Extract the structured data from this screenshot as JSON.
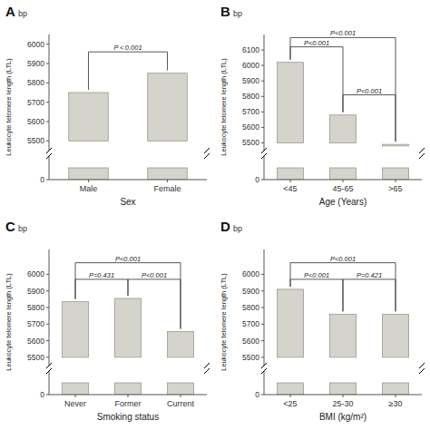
{
  "chart_data": [
    {
      "type": "bar",
      "title": "A",
      "subtitle": "bp",
      "x_label": "Sex",
      "y_label": "Leukocyte telomere length (LTL)",
      "categories": [
        "Male",
        "Female"
      ],
      "values": [
        5750,
        5850
      ],
      "bottoms": [
        5500,
        5500
      ],
      "stub_height": 60,
      "ylim": [
        5450,
        6050
      ],
      "yticks": [
        5500,
        5600,
        5700,
        5800,
        5900,
        6000
      ],
      "stub_ylim": [
        0,
        120
      ],
      "stub_yticks": [
        0
      ],
      "annotations": [
        {
          "x1": 0,
          "x2": 1,
          "y": 5960,
          "text": "P < 0.001"
        }
      ],
      "color": "#d4d4cc",
      "edge_color": "#999990",
      "annotation_color": "#444444"
    },
    {
      "type": "bar",
      "title": "B",
      "subtitle": "bp",
      "x_label": "Age (Years)",
      "y_label": "Leukocyte telomere length (LTL)",
      "categories": [
        "<45",
        "45-65",
        ">65"
      ],
      "values": [
        6020,
        5680,
        5490
      ],
      "bottoms": [
        5500,
        5500,
        5480
      ],
      "stub_height": 60,
      "ylim": [
        5450,
        6200
      ],
      "yticks": [
        5500,
        5600,
        5700,
        5800,
        5900,
        6000,
        6100
      ],
      "stub_ylim": [
        0,
        120
      ],
      "stub_yticks": [
        0
      ],
      "annotations": [
        {
          "x1": 0,
          "x2": 1,
          "y": 6120,
          "text": "P<0.001"
        },
        {
          "x1": 0,
          "x2": 2,
          "y": 6180,
          "text": "P<0.001"
        },
        {
          "x1": 1,
          "x2": 2,
          "y": 5810,
          "text": "P<0.001"
        }
      ],
      "color": "#d4d4cc",
      "edge_color": "#999990",
      "annotation_color": "#444444"
    },
    {
      "type": "bar",
      "title": "C",
      "subtitle": "bp",
      "x_label": "Smoking status",
      "y_label": "Leukocyte telomere length (LTL)",
      "categories": [
        "Never",
        "Former",
        "Current"
      ],
      "values": [
        5835,
        5855,
        5655
      ],
      "bottoms": [
        5500,
        5500,
        5500
      ],
      "stub_height": 60,
      "ylim": [
        5450,
        6150
      ],
      "yticks": [
        5500,
        5600,
        5700,
        5800,
        5900,
        6000
      ],
      "stub_ylim": [
        0,
        120
      ],
      "stub_yticks": [
        0
      ],
      "annotations": [
        {
          "x1": 0,
          "x2": 1,
          "y": 5970,
          "text": "P=0.431"
        },
        {
          "x1": 1,
          "x2": 2,
          "y": 5970,
          "text": "P<0.001"
        },
        {
          "x1": 0,
          "x2": 2,
          "y": 6070,
          "text": "P<0.001"
        }
      ],
      "color": "#d4d4cc",
      "edge_color": "#999990",
      "annotation_color": "#444444"
    },
    {
      "type": "bar",
      "title": "D",
      "subtitle": "bp",
      "x_label": "BMI (kg/m²)",
      "y_label": "Leukocyte telomere length (LTL)",
      "categories": [
        "<25",
        "25-30",
        "≥30"
      ],
      "values": [
        5910,
        5760,
        5760
      ],
      "bottoms": [
        5500,
        5500,
        5500
      ],
      "stub_height": 60,
      "ylim": [
        5450,
        6150
      ],
      "yticks": [
        5500,
        5600,
        5700,
        5800,
        5900,
        6000
      ],
      "stub_ylim": [
        0,
        120
      ],
      "stub_yticks": [
        0
      ],
      "annotations": [
        {
          "x1": 0,
          "x2": 1,
          "y": 5970,
          "text": "P<0.001"
        },
        {
          "x1": 1,
          "x2": 2,
          "y": 5970,
          "text": "P=0.421"
        },
        {
          "x1": 0,
          "x2": 2,
          "y": 6070,
          "text": "P<0.001"
        }
      ],
      "color": "#d4d4cc",
      "edge_color": "#999990",
      "annotation_color": "#444444"
    }
  ]
}
